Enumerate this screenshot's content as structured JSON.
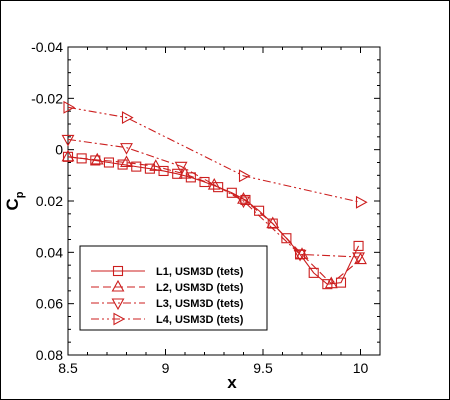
{
  "chart_data": {
    "type": "line",
    "title": "",
    "xlabel": "x",
    "ylabel": "C",
    "ylabel_sub": "p",
    "xlim": [
      8.5,
      10.1
    ],
    "ylim": [
      0.08,
      -0.04
    ],
    "y_inverted": true,
    "x_ticks": [
      8.5,
      9,
      9.5,
      10
    ],
    "x_tick_labels": [
      "8.5",
      "9",
      "9.5",
      "10"
    ],
    "y_ticks": [
      -0.04,
      -0.02,
      0,
      0.02,
      0.04,
      0.06,
      0.08
    ],
    "y_tick_labels": [
      "-0.04",
      "-0.02",
      "0",
      "0.02",
      "0.04",
      "0.06",
      "0.08"
    ],
    "grid": false,
    "legend_position": "bottom-left",
    "color": "#cc1f1f",
    "series": [
      {
        "name": "L1, USM3D (tets)",
        "marker": "square",
        "dash": "solid",
        "x": [
          8.5,
          8.57,
          8.64,
          8.71,
          8.78,
          8.85,
          8.92,
          8.99,
          9.06,
          9.13,
          9.2,
          9.27,
          9.34,
          9.41,
          9.48,
          9.55,
          9.62,
          9.69,
          9.76,
          9.83,
          9.9,
          9.99
        ],
        "y": [
          0.0028,
          0.0034,
          0.0042,
          0.005,
          0.0058,
          0.0066,
          0.0074,
          0.0083,
          0.0094,
          0.0108,
          0.0126,
          0.0146,
          0.0168,
          0.0196,
          0.0238,
          0.0288,
          0.0345,
          0.0408,
          0.048,
          0.0524,
          0.0518,
          0.0375
        ]
      },
      {
        "name": "L2, USM3D (tets)",
        "marker": "triangle-up",
        "dash": "dashed",
        "x": [
          8.5,
          8.65,
          8.8,
          8.95,
          9.1,
          9.25,
          9.4,
          9.55,
          9.7,
          9.85,
          10.0
        ],
        "y": [
          0.0028,
          0.004,
          0.005,
          0.0065,
          0.0095,
          0.0138,
          0.0193,
          0.0288,
          0.0408,
          0.0522,
          0.0428
        ]
      },
      {
        "name": "L3, USM3D (tets)",
        "marker": "triangle-down",
        "dash": "dashdot",
        "x": [
          8.5,
          8.8,
          9.08,
          9.4,
          9.69,
          9.99
        ],
        "y": [
          -0.004,
          -0.0008,
          0.0065,
          0.02,
          0.0408,
          0.0418
        ]
      },
      {
        "name": "L4, USM3D (tets)",
        "marker": "triangle-right",
        "dash": "dashdotdot",
        "x": [
          8.5,
          8.8,
          9.4,
          10.0
        ],
        "y": [
          -0.0165,
          -0.0125,
          0.0102,
          0.0205
        ]
      }
    ]
  }
}
